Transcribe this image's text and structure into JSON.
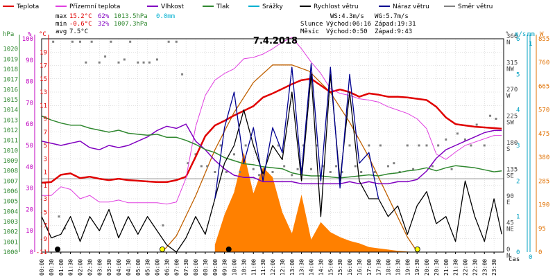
{
  "title": "7.4.2018",
  "legend": [
    {
      "label": "Teplota",
      "color": "#e00000"
    },
    {
      "label": "Přízemní teplota",
      "color": "#e040e0"
    },
    {
      "label": "Vlhkost",
      "color": "#8000c0"
    },
    {
      "label": "Tlak",
      "color": "#308830"
    },
    {
      "label": "Srážky",
      "color": "#00b0d0"
    },
    {
      "label": "Rychlost větru",
      "color": "#000000"
    },
    {
      "label": "Náraz větru",
      "color": "#000090"
    },
    {
      "label": "Směr větru",
      "color": "#808080"
    }
  ],
  "stats": {
    "max": {
      "label": "max",
      "temp": "15.2°C",
      "hum": "62%",
      "press": "1013.5hPa",
      "rain": "0.0mm"
    },
    "min": {
      "label": "min",
      "temp": "-0.6°C",
      "hum": "32%",
      "press": "1007.3hPa"
    },
    "avg": {
      "label": "avg",
      "temp": "7.5°C"
    }
  },
  "wind_stats": {
    "ws": "WS:4.3m/s",
    "wg": "WG:5.7m/s"
  },
  "sun": {
    "label": "Slunce",
    "rise": "Východ:06:16",
    "set": "Západ:19:31"
  },
  "moon": {
    "label": "Měsíc",
    "rise": "Východ:0:50",
    "set": "Západ:9:43"
  },
  "axis_units": {
    "hpa": "hPa",
    "pct": "%",
    "degc": "°C",
    "deg": "°",
    "ms": "m/s",
    "mm": "mm",
    "wm2": "W"
  },
  "x_axis_label": "čas",
  "colors": {
    "hpa": "#308830",
    "pct": "#c000c0",
    "degc": "#e00000",
    "wind": "#404040",
    "ms": "#00a0c0",
    "mm": "#00a0c0",
    "wm2": "#e07000",
    "grid": "#c8c8c8"
  },
  "chart_data": {
    "type": "line",
    "title": "7.4.2018",
    "x_ticks": [
      "00:00",
      "00:30",
      "01:00",
      "01:30",
      "02:00",
      "02:30",
      "03:00",
      "03:30",
      "04:00",
      "04:30",
      "05:00",
      "05:30",
      "06:00",
      "06:30",
      "07:00",
      "07:30",
      "08:00",
      "08:30",
      "09:00",
      "09:30",
      "10:00",
      "10:30",
      "11:00",
      "11:30",
      "12:00",
      "12:30",
      "13:00",
      "13:30",
      "14:00",
      "14:30",
      "15:00",
      "15:30",
      "16:00",
      "16:30",
      "17:00",
      "17:30",
      "18:00",
      "18:30",
      "19:00",
      "19:30",
      "20:00",
      "20:30",
      "21:00",
      "21:30",
      "22:00",
      "22:30",
      "23:00",
      "23:30"
    ],
    "y_axes": {
      "hpa": {
        "range": [
          1000,
          1021
        ],
        "ticks": [
          "1000",
          "1001",
          "1002",
          "1003",
          "1004",
          "1005",
          "1006",
          "1007",
          "1008",
          "1009",
          "1010",
          "1011",
          "1012",
          "1013",
          "1014",
          "1015",
          "1016",
          "1017",
          "1018",
          "1019",
          "1020"
        ]
      },
      "pct": {
        "range": [
          0,
          100
        ],
        "ticks": [
          "0",
          "10",
          "20",
          "30",
          "40",
          "50",
          "60",
          "70",
          "80",
          "90",
          "100"
        ]
      },
      "degc": {
        "range": [
          -11,
          21
        ],
        "ticks": [
          "-11",
          "-9",
          "-7",
          "-5",
          "-3",
          "-1",
          "1",
          "3",
          "5",
          "7",
          "9",
          "11",
          "13",
          "15",
          "17",
          "19"
        ]
      },
      "wind_dir": {
        "range": [
          0,
          360
        ],
        "ticks": [
          {
            "v": "0",
            "d": "N"
          },
          {
            "v": "45",
            "d": "NE"
          },
          {
            "v": "90",
            "d": "E"
          },
          {
            "v": "135",
            "d": "SE"
          },
          {
            "v": "180",
            "d": "S"
          },
          {
            "v": "225",
            "d": "SW"
          },
          {
            "v": "270",
            "d": "W"
          },
          {
            "v": "315",
            "d": "NW"
          },
          {
            "v": "360",
            "d": "N"
          }
        ]
      },
      "ms": {
        "range": [
          0,
          6
        ],
        "ticks": [
          "0",
          "1",
          "2",
          "3",
          "4",
          "5",
          "6"
        ]
      },
      "mm": {
        "range": [
          0,
          1
        ],
        "ticks": [
          "0",
          "1"
        ]
      },
      "wm2": {
        "range": [
          0,
          855
        ],
        "ticks": [
          "0",
          "95",
          "190",
          "285",
          "380",
          "475",
          "570",
          "665",
          "760",
          "855"
        ]
      }
    },
    "series": [
      {
        "name": "Teplota",
        "axis": "degc",
        "color": "#e00000",
        "x": [
          0,
          0.5,
          1,
          1.5,
          2,
          2.5,
          3,
          3.5,
          4,
          4.5,
          5,
          5.5,
          6,
          6.5,
          7,
          7.5,
          8,
          8.5,
          9,
          9.5,
          10,
          10.5,
          11,
          11.5,
          12,
          12.5,
          13,
          13.5,
          14,
          14.5,
          15,
          15.5,
          16,
          16.5,
          17,
          17.5,
          18,
          18.5,
          19,
          19.5,
          20,
          20.5,
          21,
          21.5,
          22,
          22.5,
          23,
          23.5,
          23.9
        ],
        "y": [
          -0.6,
          -0.5,
          0.6,
          0.8,
          0.1,
          0.3,
          0.0,
          -0.2,
          0.0,
          -0.2,
          -0.3,
          -0.4,
          -0.5,
          -0.5,
          -0.2,
          0.3,
          3.3,
          6.4,
          8.0,
          8.7,
          9.5,
          10.2,
          10.9,
          12.2,
          12.8,
          13.5,
          14.2,
          14.8,
          15.0,
          14.0,
          13.0,
          13.4,
          13.0,
          12.3,
          12.8,
          12.6,
          12.3,
          12.3,
          12.2,
          12.0,
          11.8,
          10.8,
          9.2,
          8.2,
          8.0,
          7.8,
          7.7,
          7.6,
          7.5
        ]
      },
      {
        "name": "Přízemní teplota",
        "axis": "degc",
        "color": "#e040e0",
        "x": [
          0,
          0.5,
          1,
          1.5,
          2,
          2.5,
          3,
          3.5,
          4,
          4.5,
          5,
          5.5,
          6,
          6.5,
          7,
          7.5,
          8,
          8.5,
          9,
          9.5,
          10,
          10.5,
          11,
          11.5,
          12,
          12.5,
          13,
          13.5,
          14,
          14.5,
          15,
          15.5,
          16,
          16.5,
          17,
          17.5,
          18,
          18.5,
          19,
          19.5,
          20,
          20.5,
          21,
          21.5,
          22,
          22.5,
          23,
          23.5,
          23.9
        ],
        "y": [
          -2.5,
          -2.5,
          -1.2,
          -1.6,
          -3.0,
          -2.5,
          -3.5,
          -3.5,
          -3.2,
          -3.6,
          -3.6,
          -3.6,
          -3.6,
          -3.8,
          -3.5,
          0.1,
          7.8,
          12.5,
          14.8,
          15.8,
          16.5,
          18.0,
          18.2,
          18.7,
          19.5,
          20.5,
          21.2,
          19.5,
          17.5,
          15.8,
          13.5,
          12.8,
          12.5,
          12.0,
          11.8,
          11.5,
          10.8,
          10.3,
          9.8,
          9.0,
          7.5,
          3.7,
          2.9,
          4.0,
          5.0,
          5.5,
          6.0,
          6.5,
          6.5
        ]
      },
      {
        "name": "Vlhkost",
        "axis": "pct",
        "color": "#8000c0",
        "x": [
          0,
          0.5,
          1,
          1.5,
          2,
          2.5,
          3,
          3.5,
          4,
          4.5,
          5,
          5.5,
          6,
          6.5,
          7,
          7.5,
          8,
          8.5,
          9,
          9.5,
          10,
          10.5,
          11,
          11.5,
          12,
          12.5,
          13,
          13.5,
          14,
          14.5,
          15,
          15.5,
          16,
          16.5,
          17,
          17.5,
          18,
          18.5,
          19,
          19.5,
          20,
          20.5,
          21,
          21.5,
          22,
          22.5,
          23,
          23.5,
          23.9
        ],
        "y": [
          52,
          51,
          50,
          51,
          52,
          49,
          48,
          50,
          49,
          50,
          52,
          54,
          57,
          59,
          58,
          60,
          52,
          48,
          43,
          39,
          36,
          35,
          35,
          33,
          33,
          33,
          33,
          32,
          32,
          32,
          32,
          32,
          33,
          32,
          33,
          32,
          32,
          33,
          33,
          34,
          38,
          44,
          48,
          50,
          52,
          54,
          56,
          57,
          57
        ]
      },
      {
        "name": "Tlak",
        "axis": "hpa",
        "color": "#308830",
        "x": [
          0,
          0.5,
          1,
          1.5,
          2,
          2.5,
          3,
          3.5,
          4,
          4.5,
          5,
          5.5,
          6,
          6.5,
          7,
          7.5,
          8,
          8.5,
          9,
          9.5,
          10,
          10.5,
          11,
          11.5,
          12,
          12.5,
          13,
          13.5,
          14,
          14.5,
          15,
          15.5,
          16,
          16.5,
          17,
          17.5,
          18,
          18.5,
          19,
          19.5,
          20,
          20.5,
          21,
          21.5,
          22,
          22.5,
          23,
          23.5,
          23.9
        ],
        "y": [
          1013.4,
          1013.0,
          1012.7,
          1012.5,
          1012.5,
          1012.2,
          1012.0,
          1011.8,
          1012.0,
          1011.7,
          1011.6,
          1011.5,
          1011.6,
          1011.3,
          1011.3,
          1011.0,
          1010.6,
          1010.1,
          1009.8,
          1009.3,
          1009.0,
          1008.7,
          1008.6,
          1008.4,
          1008.3,
          1008.2,
          1007.8,
          1007.6,
          1007.5,
          1007.5,
          1007.4,
          1007.3,
          1007.4,
          1007.5,
          1007.6,
          1007.5,
          1007.7,
          1007.8,
          1008.0,
          1008.1,
          1008.3,
          1008.0,
          1008.3,
          1008.5,
          1008.4,
          1008.3,
          1008.1,
          1007.9,
          1008.0
        ]
      },
      {
        "name": "Rychlost větru",
        "axis": "ms",
        "color": "#000000",
        "x": [
          0,
          0.5,
          1,
          1.5,
          2,
          2.5,
          3,
          3.5,
          4,
          4.5,
          5,
          5.5,
          6,
          6.5,
          7,
          7.5,
          8,
          8.5,
          9,
          9.5,
          10,
          10.5,
          11,
          11.5,
          12,
          12.5,
          13,
          13.5,
          14,
          14.5,
          15,
          15.5,
          16,
          16.5,
          17,
          17.5,
          18,
          18.5,
          19,
          19.5,
          20,
          20.5,
          21,
          21.5,
          22,
          22.5,
          23,
          23.5,
          23.9
        ],
        "y": [
          1.0,
          0.4,
          0.5,
          1.0,
          0.3,
          1.0,
          0.6,
          1.2,
          0.4,
          1.0,
          0.5,
          1.0,
          0.6,
          0.2,
          0.0,
          0.4,
          1.0,
          0.5,
          1.5,
          2.5,
          3.0,
          4.0,
          3.0,
          2.2,
          3.0,
          2.6,
          4.5,
          2.0,
          5.0,
          1.0,
          5.0,
          2.0,
          4.5,
          2.0,
          1.5,
          1.5,
          1.0,
          1.3,
          0.5,
          1.3,
          1.7,
          0.8,
          1.0,
          0.3,
          2.0,
          1.0,
          0.3,
          1.5,
          0.5
        ]
      },
      {
        "name": "Náraz větru",
        "axis": "ms",
        "color": "#000090",
        "x": [
          9,
          9.5,
          10,
          10.5,
          11,
          11.5,
          12,
          12.5,
          13,
          13.5,
          14,
          14.5,
          15,
          15.5,
          16,
          16.5,
          17,
          17.5
        ],
        "y": [
          1.5,
          3.5,
          4.5,
          2.5,
          3.5,
          2.0,
          3.5,
          2.8,
          5.2,
          2.2,
          5.3,
          2.0,
          5.2,
          1.8,
          5.0,
          2.5,
          2.8,
          1.5
        ]
      }
    ],
    "solar_radiation": {
      "name": "Sluneční záření",
      "axis": "wm2",
      "color": "#ff8000",
      "x": [
        9,
        9.5,
        10,
        10.5,
        11,
        11.5,
        12,
        12.5,
        13,
        13.5,
        14,
        14.5,
        15,
        15.5,
        16,
        16.5,
        17,
        17.5,
        18,
        18.5,
        19,
        19.5
      ],
      "y": [
        30,
        150,
        240,
        400,
        235,
        340,
        300,
        160,
        75,
        230,
        50,
        120,
        80,
        60,
        45,
        35,
        20,
        15,
        10,
        5,
        2,
        0
      ]
    },
    "solar_theoretical": {
      "name": "Teoretické záření",
      "axis": "wm2",
      "color": "#c06000",
      "x": [
        6.27,
        7,
        8,
        9,
        10,
        11,
        12,
        13,
        13.9,
        15,
        16,
        17,
        18,
        19,
        19.52
      ],
      "y": [
        0,
        65,
        225,
        410,
        560,
        680,
        750,
        750,
        725,
        640,
        520,
        380,
        220,
        60,
        0
      ]
    },
    "wind_direction": {
      "name": "Směr větru",
      "axis": "wind_dir",
      "color": "#808080",
      "x": [
        0.3,
        0.6,
        0.9,
        1.2,
        1.6,
        2.0,
        2.3,
        2.6,
        3.0,
        3.3,
        3.6,
        4.0,
        4.3,
        4.6,
        5.0,
        5.3,
        5.6,
        6.0,
        6.3,
        6.6,
        7.0,
        7.3,
        7.6,
        8.0,
        8.3,
        8.6,
        9.0,
        9.3,
        9.6,
        10.0,
        10.3,
        10.6,
        11.0,
        11.3,
        11.6,
        12.0,
        12.3,
        12.6,
        13.0,
        13.3,
        13.6,
        14.0,
        14.3,
        14.6,
        15.0,
        15.3,
        15.6,
        16.0,
        16.3,
        16.6,
        17.0,
        17.3,
        17.6,
        18.0,
        18.3,
        18.6,
        19.0,
        19.3,
        19.6,
        20.0,
        20.3,
        20.6,
        21.0,
        21.3,
        21.6,
        22.0,
        22.3,
        22.6,
        23.0,
        23.3,
        23.6
      ],
      "y": [
        40,
        355,
        60,
        40,
        355,
        355,
        320,
        355,
        320,
        330,
        355,
        320,
        325,
        355,
        320,
        320,
        320,
        325,
        45,
        355,
        355,
        300,
        150,
        165,
        145,
        145,
        135,
        180,
        135,
        165,
        135,
        180,
        140,
        130,
        140,
        135,
        180,
        145,
        130,
        140,
        180,
        140,
        180,
        145,
        135,
        145,
        135,
        180,
        145,
        135,
        180,
        135,
        180,
        145,
        150,
        135,
        180,
        140,
        180,
        180,
        145,
        180,
        190,
        140,
        200,
        190,
        180,
        215,
        180,
        230,
        225
      ]
    },
    "markers": [
      {
        "name": "Východ Měsíce",
        "x": 0.83,
        "color": "#000000"
      },
      {
        "name": "Východ Slunce",
        "x": 6.27,
        "color": "#ffff00"
      },
      {
        "name": "Západ Měsíce",
        "x": 9.72,
        "color": "#000000"
      },
      {
        "name": "Západ Slunce",
        "x": 19.52,
        "color": "#ffff00"
      }
    ]
  }
}
